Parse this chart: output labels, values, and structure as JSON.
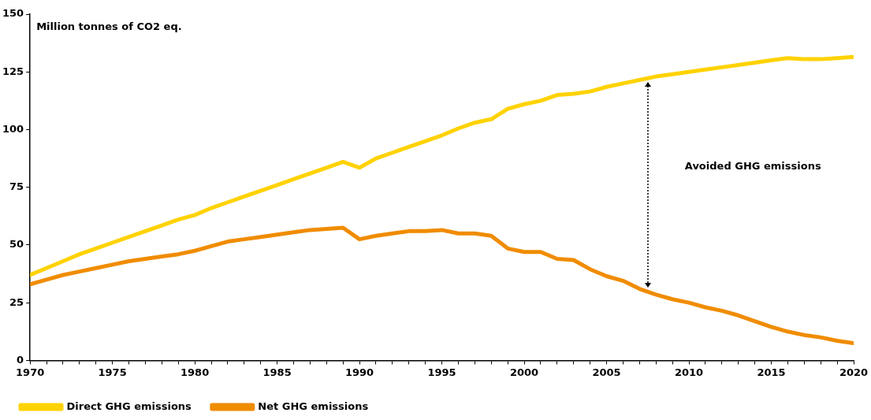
{
  "chart_data": {
    "type": "line",
    "ylabel": "Million tonnes of CO2 eq.",
    "x": [
      1970,
      1971,
      1972,
      1973,
      1974,
      1975,
      1976,
      1977,
      1978,
      1979,
      1980,
      1981,
      1982,
      1983,
      1984,
      1985,
      1986,
      1987,
      1988,
      1989,
      1990,
      1991,
      1992,
      1993,
      1994,
      1995,
      1996,
      1997,
      1998,
      1999,
      2000,
      2001,
      2002,
      2003,
      2004,
      2005,
      2006,
      2007,
      2008,
      2009,
      2010,
      2011,
      2012,
      2013,
      2014,
      2015,
      2016,
      2017,
      2018,
      2019,
      2020
    ],
    "series": [
      {
        "name": "Direct GHG emissions",
        "color": "#ffd200",
        "values": [
          37,
          40,
          43,
          46,
          48.5,
          51,
          53.5,
          56,
          58.5,
          61,
          63,
          66,
          68.5,
          71,
          73.5,
          76,
          78.5,
          81,
          83.5,
          86,
          83.5,
          87.5,
          90,
          92.5,
          95,
          97.5,
          100.5,
          103,
          104.5,
          109,
          111,
          112.5,
          115,
          115.5,
          116.5,
          118.5,
          120,
          121.5,
          123,
          124,
          125,
          126,
          127,
          128,
          129,
          130,
          131,
          130.5,
          130.5,
          131,
          131.5
        ]
      },
      {
        "name": "Net GHG emissions",
        "color": "#f08c00",
        "values": [
          33,
          35,
          37,
          38.5,
          40,
          41.5,
          43,
          44,
          45,
          46,
          47.5,
          49.5,
          51.5,
          52.5,
          53.5,
          54.5,
          55.5,
          56.5,
          57,
          57.5,
          52.5,
          54,
          55,
          56,
          56,
          56.5,
          55,
          55,
          54,
          48.5,
          47,
          47,
          44,
          43.5,
          39.5,
          36.5,
          34.5,
          31,
          28.5,
          26.5,
          25,
          23,
          21.5,
          19.5,
          17,
          14.5,
          12.5,
          11,
          10,
          8.5,
          7.5
        ]
      }
    ],
    "xlim": [
      1970,
      2020
    ],
    "xticks": [
      1970,
      {
        "value": 1971,
        "label": null
      },
      {
        "value": 1972,
        "label": null
      },
      {
        "value": 1973,
        "label": null
      },
      {
        "value": 1974,
        "label": null
      },
      1975,
      {
        "value": 1976,
        "label": null
      },
      {
        "value": 1977,
        "label": null
      },
      {
        "value": 1978,
        "label": null
      },
      {
        "value": 1979,
        "label": null
      },
      1980,
      {
        "value": 1981,
        "label": null
      },
      {
        "value": 1982,
        "label": null
      },
      {
        "value": 1983,
        "label": null
      },
      {
        "value": 1984,
        "label": null
      },
      1985,
      {
        "value": 1986,
        "label": null
      },
      {
        "value": 1987,
        "label": null
      },
      {
        "value": 1988,
        "label": null
      },
      {
        "value": 1989,
        "label": null
      },
      1990,
      {
        "value": 1991,
        "label": null
      },
      {
        "value": 1992,
        "label": null
      },
      {
        "value": 1993,
        "label": null
      },
      {
        "value": 1994,
        "label": null
      },
      1995,
      {
        "value": 1996,
        "label": null
      },
      {
        "value": 1997,
        "label": null
      },
      {
        "value": 1998,
        "label": null
      },
      {
        "value": 1999,
        "label": null
      },
      2000,
      {
        "value": 2001,
        "label": null
      },
      {
        "value": 2002,
        "label": null
      },
      {
        "value": 2003,
        "label": null
      },
      {
        "value": 2004,
        "label": null
      },
      2005,
      {
        "value": 2006,
        "label": null
      },
      {
        "value": 2007,
        "label": null
      },
      {
        "value": 2008,
        "label": null
      },
      {
        "value": 2009,
        "label": null
      },
      2010,
      {
        "value": 2011,
        "label": null
      },
      {
        "value": 2012,
        "label": null
      },
      {
        "value": 2013,
        "label": null
      },
      {
        "value": 2014,
        "label": null
      },
      2015,
      {
        "value": 2016,
        "label": null
      },
      {
        "value": 2017,
        "label": null
      },
      {
        "value": 2018,
        "label": null
      },
      {
        "value": 2019,
        "label": null
      },
      2020
    ],
    "ylim": [
      0,
      150
    ],
    "yticks": [
      0,
      25,
      50,
      75,
      100,
      125,
      150
    ],
    "grid": false,
    "legend": "bottom left",
    "marker": "none",
    "line_style": "solid",
    "annotations": [
      "Avoided GHG emissions"
    ]
  }
}
